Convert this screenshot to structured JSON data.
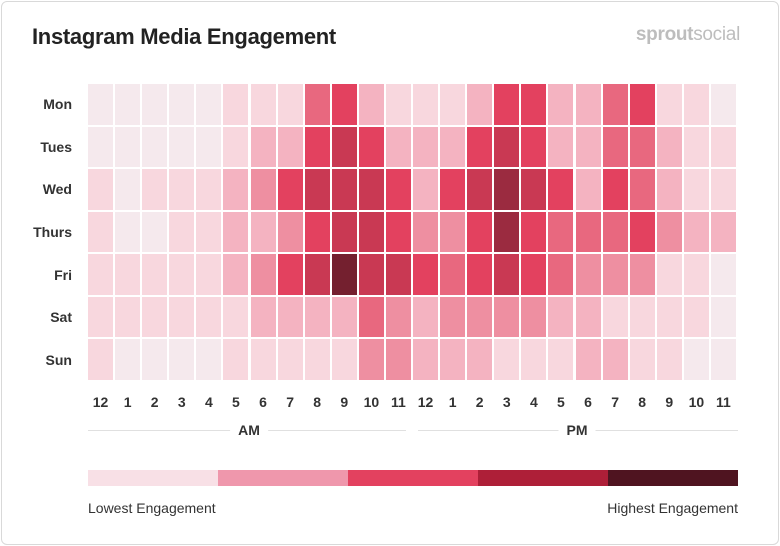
{
  "header": {
    "title": "Instagram Media Engagement",
    "logo_bold": "sprout",
    "logo_light": "social"
  },
  "chart_data": {
    "type": "heatmap",
    "title": "Instagram Media Engagement",
    "rows": [
      "Mon",
      "Tues",
      "Wed",
      "Thurs",
      "Fri",
      "Sat",
      "Sun"
    ],
    "columns": [
      "12",
      "1",
      "2",
      "3",
      "4",
      "5",
      "6",
      "7",
      "8",
      "9",
      "10",
      "11",
      "12",
      "1",
      "2",
      "3",
      "4",
      "5",
      "6",
      "7",
      "8",
      "9",
      "10",
      "11"
    ],
    "column_groups": [
      {
        "label": "AM"
      },
      {
        "label": "PM"
      }
    ],
    "value_scale": "engagement level 0 (lowest) to 8 (highest)",
    "values": [
      [
        0,
        0,
        0,
        0,
        0,
        1,
        1,
        1,
        4,
        5,
        2,
        1,
        1,
        1,
        2,
        5,
        5,
        2,
        2,
        4,
        5,
        1,
        1,
        0
      ],
      [
        0,
        0,
        0,
        0,
        0,
        1,
        2,
        2,
        5,
        6,
        5,
        2,
        2,
        2,
        5,
        6,
        5,
        2,
        2,
        4,
        4,
        2,
        1,
        1
      ],
      [
        1,
        0,
        1,
        1,
        1,
        2,
        3,
        5,
        6,
        6,
        6,
        5,
        2,
        5,
        6,
        7,
        6,
        5,
        2,
        5,
        4,
        2,
        1,
        1
      ],
      [
        1,
        0,
        0,
        1,
        1,
        2,
        2,
        3,
        5,
        6,
        6,
        5,
        3,
        3,
        5,
        7,
        5,
        4,
        4,
        4,
        5,
        3,
        2,
        2
      ],
      [
        1,
        1,
        1,
        1,
        1,
        2,
        3,
        5,
        6,
        8,
        6,
        6,
        5,
        4,
        5,
        6,
        5,
        4,
        3,
        3,
        3,
        1,
        1,
        0
      ],
      [
        1,
        1,
        1,
        1,
        1,
        1,
        2,
        2,
        2,
        2,
        4,
        3,
        2,
        3,
        3,
        3,
        3,
        2,
        2,
        1,
        1,
        1,
        1,
        0
      ],
      [
        1,
        0,
        0,
        0,
        0,
        1,
        1,
        1,
        1,
        1,
        3,
        3,
        2,
        2,
        2,
        1,
        1,
        1,
        2,
        2,
        1,
        1,
        0,
        0
      ]
    ],
    "cell_colors": [
      "#f5e9ed",
      "#f8d7de",
      "#f4b3c1",
      "#ee8fa1",
      "#e8687f",
      "#e3415f",
      "#c93953",
      "#9b2b40",
      "#74202f"
    ],
    "legend": {
      "colors": [
        "#f8e0e6",
        "#ef97ac",
        "#e3415f",
        "#ae1f38",
        "#4f1420"
      ],
      "low_label": "Lowest Engagement",
      "high_label": "Highest Engagement"
    }
  }
}
